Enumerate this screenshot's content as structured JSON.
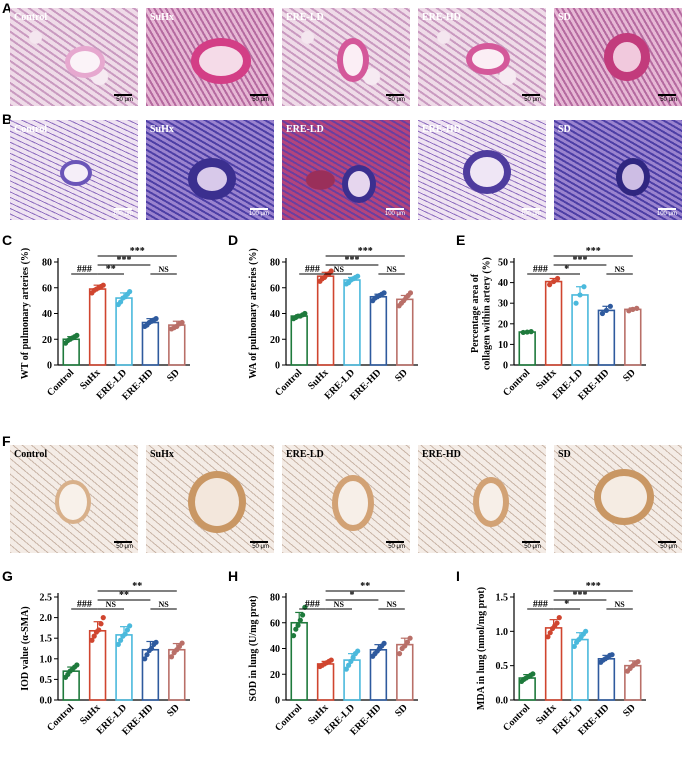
{
  "panel_letters": {
    "A": "A",
    "B": "B",
    "C": "C",
    "D": "D",
    "E": "E",
    "F": "F",
    "G": "G",
    "H": "H",
    "I": "I"
  },
  "images": {
    "row_a": [
      {
        "label": "Control",
        "scale": "50 μm"
      },
      {
        "label": "SuHx",
        "scale": "50 μm"
      },
      {
        "label": "ERE-LD",
        "scale": "50 μm"
      },
      {
        "label": "ERE-HD",
        "scale": "50 μm"
      },
      {
        "label": "SD",
        "scale": "50 μm"
      }
    ],
    "row_b": [
      {
        "label": "Control",
        "scale": "100 μm"
      },
      {
        "label": "SuHx",
        "scale": "100 μm"
      },
      {
        "label": "ERE-LD",
        "scale": "100 μm"
      },
      {
        "label": "ERE-HD",
        "scale": "100 μm"
      },
      {
        "label": "SD",
        "scale": "100 μm"
      }
    ],
    "row_f": [
      {
        "label": "Control",
        "scale": "50 μm"
      },
      {
        "label": "SuHx",
        "scale": "50 μm"
      },
      {
        "label": "ERE-LD",
        "scale": "50 μm"
      },
      {
        "label": "ERE-HD",
        "scale": "50 μm"
      },
      {
        "label": "SD",
        "scale": "50 μm"
      }
    ]
  },
  "colors": {
    "Control": "#1e7a3c",
    "SuHx": "#d0452f",
    "ERE-LD": "#4ab9dc",
    "ERE-HD": "#2e5a9e",
    "SD": "#b96f68"
  },
  "chart_data": [
    {
      "id": "C",
      "type": "bar",
      "categories": [
        "Control",
        "SuHx",
        "ERE-LD",
        "ERE-HD",
        "SD"
      ],
      "values": [
        20,
        59,
        52,
        33,
        31
      ],
      "errors": [
        2,
        3,
        4,
        3,
        3
      ],
      "points": [
        [
          17,
          19,
          20,
          21,
          22,
          23
        ],
        [
          56,
          58,
          59,
          60,
          61,
          62
        ],
        [
          47,
          49,
          52,
          53,
          55,
          57
        ],
        [
          30,
          31,
          33,
          34,
          35,
          36
        ],
        [
          28,
          29,
          30,
          32,
          33
        ]
      ],
      "ylabel": "WT of pulmonary arteries (%)",
      "ylim": [
        0,
        80
      ],
      "yticks": [
        0,
        20,
        40,
        60,
        80
      ],
      "sig": [
        {
          "from": 0,
          "to": 1,
          "text": "###",
          "level": 1
        },
        {
          "from": 1,
          "to": 2,
          "text": "**",
          "level": 1
        },
        {
          "from": 3,
          "to": 4,
          "text": "NS",
          "level": 1
        },
        {
          "from": 1,
          "to": 3,
          "text": "***",
          "level": 2
        },
        {
          "from": 1,
          "to": 4,
          "text": "***",
          "level": 3
        }
      ]
    },
    {
      "id": "D",
      "type": "bar",
      "categories": [
        "Control",
        "SuHx",
        "ERE-LD",
        "ERE-HD",
        "SD"
      ],
      "values": [
        38,
        69,
        66,
        53,
        51
      ],
      "errors": [
        1,
        3,
        2,
        2,
        3
      ],
      "points": [
        [
          36,
          37,
          38,
          38,
          39,
          40
        ],
        [
          65,
          67,
          68,
          70,
          71,
          73
        ],
        [
          63,
          64,
          66,
          67,
          68,
          69
        ],
        [
          50,
          52,
          53,
          54,
          55,
          56
        ],
        [
          46,
          48,
          50,
          52,
          54,
          56
        ]
      ],
      "ylabel": "WA of pulmonary arteries (%)",
      "ylim": [
        0,
        80
      ],
      "yticks": [
        0,
        20,
        40,
        60,
        80
      ],
      "sig": [
        {
          "from": 0,
          "to": 1,
          "text": "###",
          "level": 1
        },
        {
          "from": 1,
          "to": 2,
          "text": "NS",
          "level": 1
        },
        {
          "from": 3,
          "to": 4,
          "text": "NS",
          "level": 1
        },
        {
          "from": 1,
          "to": 3,
          "text": "***",
          "level": 2
        },
        {
          "from": 1,
          "to": 4,
          "text": "***",
          "level": 3
        }
      ]
    },
    {
      "id": "E",
      "type": "bar",
      "categories": [
        "Control",
        "SuHx",
        "ERE-LD",
        "ERE-HD",
        "SD"
      ],
      "values": [
        16,
        40.5,
        34,
        26.5,
        27
      ],
      "errors": [
        0.3,
        1.5,
        4,
        2,
        0.7
      ],
      "points": [
        [
          15.8,
          16,
          16.2
        ],
        [
          39,
          40.5,
          42
        ],
        [
          30,
          34,
          38
        ],
        [
          25,
          26.5,
          28.5
        ],
        [
          26.3,
          27,
          27.5
        ]
      ],
      "ylabel": "Percentage area of collagen within artery (%)",
      "ylim": [
        0,
        50
      ],
      "yticks": [
        0,
        10,
        20,
        30,
        40,
        50
      ],
      "sig": [
        {
          "from": 0,
          "to": 1,
          "text": "###",
          "level": 1
        },
        {
          "from": 1,
          "to": 2,
          "text": "*",
          "level": 1
        },
        {
          "from": 3,
          "to": 4,
          "text": "NS",
          "level": 1
        },
        {
          "from": 1,
          "to": 3,
          "text": "***",
          "level": 2
        },
        {
          "from": 1,
          "to": 4,
          "text": "***",
          "level": 3
        }
      ]
    },
    {
      "id": "G",
      "type": "bar",
      "categories": [
        "Control",
        "SuHx",
        "ERE-LD",
        "ERE-HD",
        "SD"
      ],
      "values": [
        0.7,
        1.68,
        1.58,
        1.22,
        1.22
      ],
      "errors": [
        0.1,
        0.22,
        0.2,
        0.2,
        0.15
      ],
      "points": [
        [
          0.55,
          0.62,
          0.7,
          0.74,
          0.8,
          0.85
        ],
        [
          1.45,
          1.55,
          1.65,
          1.7,
          1.85,
          2.0
        ],
        [
          1.35,
          1.45,
          1.55,
          1.6,
          1.7,
          1.8
        ],
        [
          1.0,
          1.1,
          1.2,
          1.25,
          1.35,
          1.4
        ],
        [
          1.05,
          1.15,
          1.22,
          1.3,
          1.38
        ]
      ],
      "ylabel": "IOD value (α-SMA)",
      "ylim": [
        0,
        2.5
      ],
      "yticks": [
        0.0,
        0.5,
        1.0,
        1.5,
        2.0,
        2.5
      ],
      "sig": [
        {
          "from": 0,
          "to": 1,
          "text": "###",
          "level": 1
        },
        {
          "from": 1,
          "to": 2,
          "text": "NS",
          "level": 1
        },
        {
          "from": 3,
          "to": 4,
          "text": "NS",
          "level": 1
        },
        {
          "from": 1,
          "to": 3,
          "text": "**",
          "level": 2
        },
        {
          "from": 1,
          "to": 4,
          "text": "**",
          "level": 3
        }
      ]
    },
    {
      "id": "H",
      "type": "bar",
      "categories": [
        "Control",
        "SuHx",
        "ERE-LD",
        "ERE-HD",
        "SD"
      ],
      "values": [
        60,
        28,
        31,
        39,
        43
      ],
      "errors": [
        8,
        2,
        5,
        4,
        5
      ],
      "points": [
        [
          50,
          55,
          58,
          62,
          66,
          72
        ],
        [
          26,
          27,
          28,
          29,
          30,
          31
        ],
        [
          24,
          27,
          30,
          33,
          36,
          38
        ],
        [
          34,
          36,
          38,
          40,
          42,
          44
        ],
        [
          36,
          40,
          42,
          45,
          48
        ]
      ],
      "ylabel": "SOD in lung (U/mg prot)",
      "ylim": [
        0,
        80
      ],
      "yticks": [
        0,
        20,
        40,
        60,
        80
      ],
      "sig": [
        {
          "from": 0,
          "to": 1,
          "text": "###",
          "level": 1
        },
        {
          "from": 1,
          "to": 2,
          "text": "NS",
          "level": 1
        },
        {
          "from": 3,
          "to": 4,
          "text": "NS",
          "level": 1
        },
        {
          "from": 1,
          "to": 3,
          "text": "*",
          "level": 2
        },
        {
          "from": 1,
          "to": 4,
          "text": "**",
          "level": 3
        }
      ]
    },
    {
      "id": "I",
      "type": "bar",
      "categories": [
        "Control",
        "SuHx",
        "ERE-LD",
        "ERE-HD",
        "SD"
      ],
      "values": [
        0.32,
        1.05,
        0.88,
        0.6,
        0.5
      ],
      "errors": [
        0.05,
        0.12,
        0.1,
        0.05,
        0.07
      ],
      "points": [
        [
          0.27,
          0.3,
          0.32,
          0.34,
          0.36,
          0.38
        ],
        [
          0.92,
          0.98,
          1.04,
          1.08,
          1.12,
          1.2
        ],
        [
          0.78,
          0.84,
          0.88,
          0.92,
          0.96,
          1.0
        ],
        [
          0.55,
          0.58,
          0.6,
          0.62,
          0.65,
          0.66
        ],
        [
          0.42,
          0.46,
          0.5,
          0.53,
          0.56
        ]
      ],
      "ylabel": "MDA in lung (nmol/mg prot)",
      "ylim": [
        0,
        1.5
      ],
      "yticks": [
        0.0,
        0.5,
        1.0,
        1.5
      ],
      "sig": [
        {
          "from": 0,
          "to": 1,
          "text": "###",
          "level": 1
        },
        {
          "from": 1,
          "to": 2,
          "text": "*",
          "level": 1
        },
        {
          "from": 3,
          "to": 4,
          "text": "NS",
          "level": 1
        },
        {
          "from": 1,
          "to": 3,
          "text": "***",
          "level": 2
        },
        {
          "from": 1,
          "to": 4,
          "text": "***",
          "level": 3
        }
      ]
    }
  ]
}
